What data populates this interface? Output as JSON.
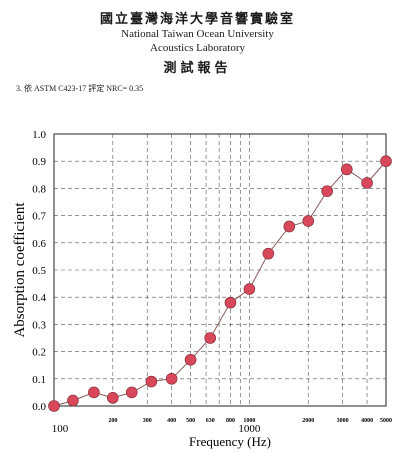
{
  "header": {
    "institution_zh": "國立臺灣海洋大學音響實驗室",
    "institution_en": "National Taiwan Ocean University",
    "lab_en": "Acoustics Laboratory",
    "report_zh": "測試報告"
  },
  "test_line": "3. 依 ASTM C423-17 評定 NRC= 0.35",
  "chart_data": {
    "type": "line",
    "xscale": "log",
    "xlabel": "Frequency (Hz)",
    "ylabel": "Absorption coefficient",
    "ylim": [
      0,
      1.0
    ],
    "xlim": [
      100,
      5000
    ],
    "grid": true,
    "y_ticks": [
      "0.0",
      "0.1",
      "0.2",
      "0.3",
      "0.4",
      "0.5",
      "0.6",
      "0.7",
      "0.8",
      "0.9",
      "1.0"
    ],
    "x_tick_labels_small": [
      "200",
      "300",
      "400",
      "500",
      "630",
      "800",
      "1000",
      "2000",
      "3000",
      "4000",
      "5000"
    ],
    "x_tick_labels_major": [
      "100",
      "1000"
    ],
    "series": [
      {
        "marker_color": "#d9475a",
        "line_color": "#8a5a5a",
        "x": [
          100,
          125,
          160,
          200,
          250,
          315,
          400,
          500,
          630,
          800,
          1000,
          1250,
          1600,
          2000,
          2500,
          3150,
          4000,
          5000
        ],
        "y": [
          0.0,
          0.02,
          0.05,
          0.03,
          0.05,
          0.09,
          0.1,
          0.17,
          0.25,
          0.38,
          0.43,
          0.56,
          0.66,
          0.68,
          0.79,
          0.87,
          0.82,
          0.9
        ]
      }
    ]
  }
}
